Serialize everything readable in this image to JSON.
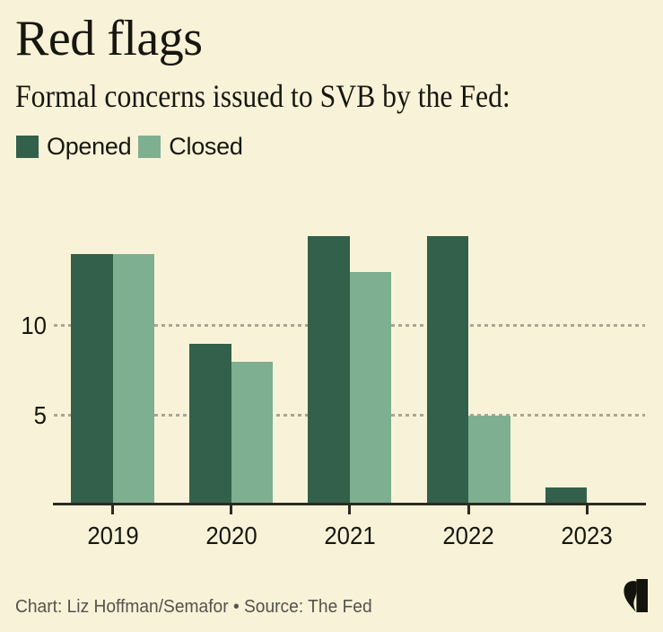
{
  "header": {
    "title": "Red flags",
    "subtitle": "Formal concerns issued to SVB by the Fed:"
  },
  "chart_data": {
    "type": "bar",
    "title": "Red flags",
    "subtitle": "Formal concerns issued to SVB by the Fed:",
    "categories": [
      "2019",
      "2020",
      "2021",
      "2022",
      "2023"
    ],
    "series": [
      {
        "name": "Opened",
        "color": "#33604a",
        "values": [
          14,
          9,
          15,
          15,
          1
        ]
      },
      {
        "name": "Closed",
        "color": "#7eaf91",
        "values": [
          14,
          8,
          13,
          5,
          0
        ]
      }
    ],
    "xlabel": "",
    "ylabel": "",
    "yticks": [
      5,
      10
    ],
    "ylim": [
      0,
      15.75
    ],
    "grid": "horizontal-dashed",
    "legend_position": "top-left",
    "bar_grouping": "grouped-adjacent"
  },
  "footer": {
    "credit": "Chart: Liz Hoffman/Semafor • Source: The Fed"
  },
  "branding": {
    "logo": "semafor-logo"
  },
  "colors": {
    "background": "#f8f3d8",
    "opened": "#33604a",
    "closed": "#7eaf91",
    "axis": "#2b2a22",
    "gridline": "#aba692",
    "text": "#17170f",
    "footer_text": "#54524a",
    "logo": "#14140d"
  }
}
